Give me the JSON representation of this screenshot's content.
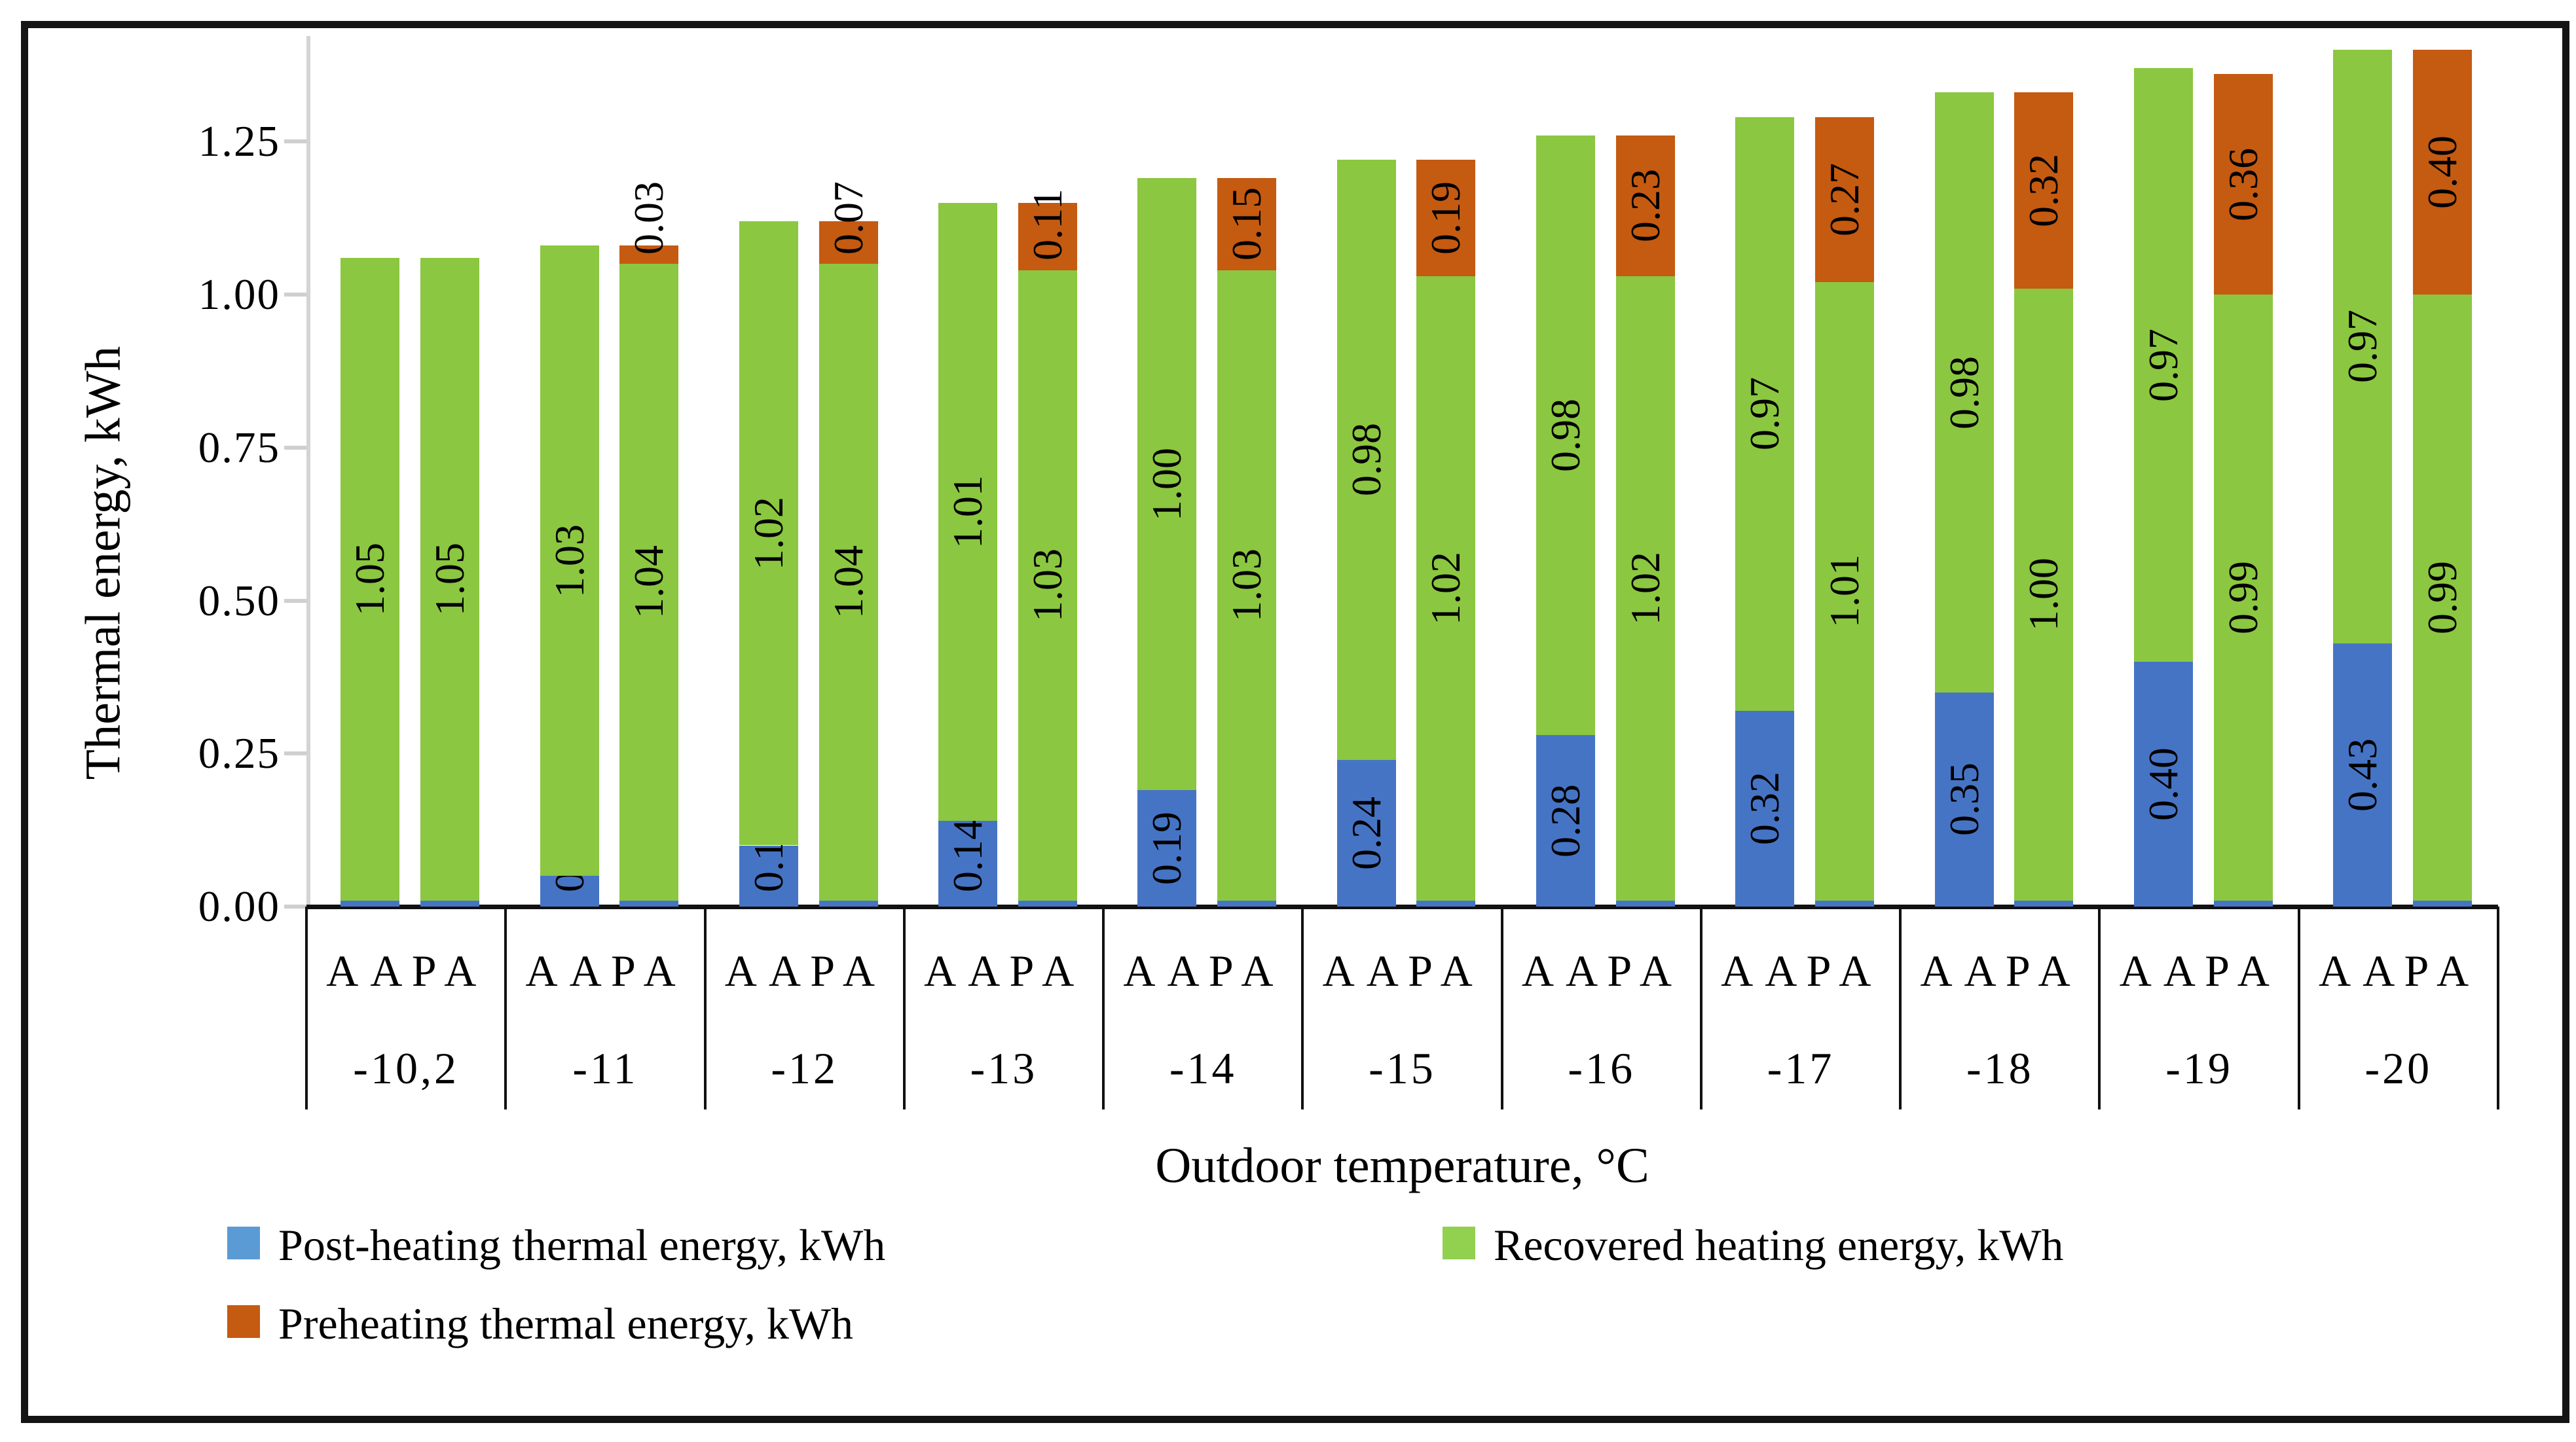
{
  "figure": {
    "border_color": "#141414",
    "background": "#ffffff"
  },
  "chart_data": {
    "type": "bar",
    "stacked": true,
    "xlabel": "Outdoor temperature, °C",
    "ylabel": "Thermal energy, kWh",
    "ylim": [
      0,
      1.45
    ],
    "grid": false,
    "ytick_labels": [
      "0.00",
      "0.25",
      "0.50",
      "0.75",
      "1.00",
      "1.25"
    ],
    "yticks": [
      0,
      0.25,
      0.5,
      0.75,
      1.0,
      1.25
    ],
    "categories": [
      "-10,2",
      "-11",
      "-12",
      "-13",
      "-14",
      "-15",
      "-16",
      "-17",
      "-18",
      "-19",
      "-20"
    ],
    "subcategories": [
      "AA",
      "PA"
    ],
    "series": [
      {
        "name": "Post-heating thermal energy, kWh",
        "color": "#4674C5",
        "aa": [
          0.01,
          0.05,
          0.1,
          0.14,
          0.19,
          0.24,
          0.28,
          0.32,
          0.35,
          0.4,
          0.43
        ],
        "pa": [
          0.01,
          0.01,
          0.01,
          0.01,
          0.01,
          0.01,
          0.01,
          0.01,
          0.01,
          0.01,
          0.01
        ]
      },
      {
        "name": "Recovered heating energy, kWh",
        "color": "#8BC740",
        "aa": [
          1.05,
          1.03,
          1.02,
          1.01,
          1.0,
          0.98,
          0.98,
          0.97,
          0.98,
          0.97,
          0.97
        ],
        "pa": [
          1.05,
          1.04,
          1.04,
          1.03,
          1.03,
          1.02,
          1.02,
          1.01,
          1.0,
          0.99,
          0.99
        ]
      },
      {
        "name": "Preheating thermal energy, kWh",
        "color": "#C55A11",
        "aa": [
          0,
          0,
          0,
          0,
          0,
          0,
          0,
          0,
          0,
          0,
          0
        ],
        "pa": [
          0,
          0.03,
          0.07,
          0.11,
          0.15,
          0.19,
          0.23,
          0.27,
          0.32,
          0.36,
          0.4
        ]
      }
    ],
    "legend_position": "bottom"
  },
  "legend": {
    "items": [
      {
        "label": "Post-heating thermal energy, kWh",
        "swatch_color": "#5B9BD5"
      },
      {
        "label": "Preheating thermal energy, kWh",
        "swatch_color": "#C55A11"
      },
      {
        "label": "Recovered heating energy, kWh",
        "swatch_color": "#92D050"
      }
    ]
  }
}
